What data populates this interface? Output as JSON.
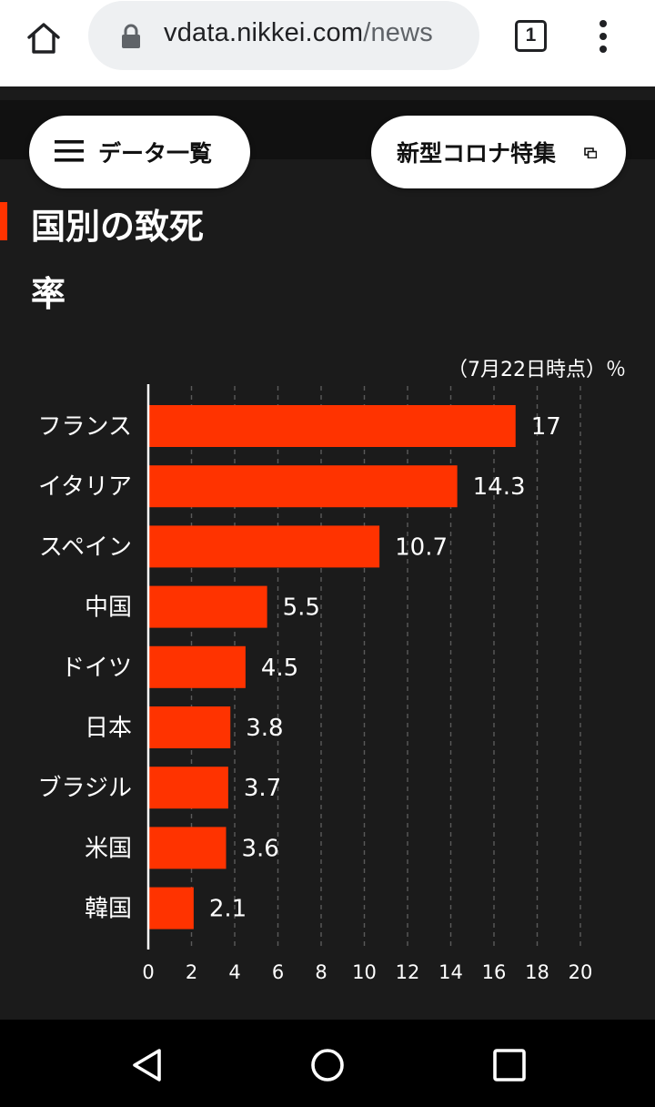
{
  "browser": {
    "url_host": "vdata.nikkei.com",
    "url_path": "/news",
    "tab_count": "1"
  },
  "header": {
    "data_list_label": "データ一覧",
    "corona_label": "新型コロナ特集"
  },
  "page": {
    "title": "国別の致死率"
  },
  "colors": {
    "accent": "#ff3300",
    "background": "#1b1b1b"
  },
  "chart_data": {
    "type": "bar",
    "orientation": "horizontal",
    "note": "（7月22日時点）％",
    "categories": [
      "フランス",
      "イタリア",
      "スペイン",
      "中国",
      "ドイツ",
      "日本",
      "ブラジル",
      "米国",
      "韓国"
    ],
    "values": [
      17,
      14.3,
      10.7,
      5.5,
      4.5,
      3.8,
      3.7,
      3.6,
      2.1
    ],
    "value_labels": [
      "17",
      "14.3",
      "10.7",
      "5.5",
      "4.5",
      "3.8",
      "3.7",
      "3.6",
      "2.1"
    ],
    "xlim": [
      0,
      20
    ],
    "xticks": [
      0,
      2,
      4,
      6,
      8,
      10,
      12,
      14,
      16,
      18,
      20
    ],
    "grid": true,
    "color": "#ff3300"
  }
}
